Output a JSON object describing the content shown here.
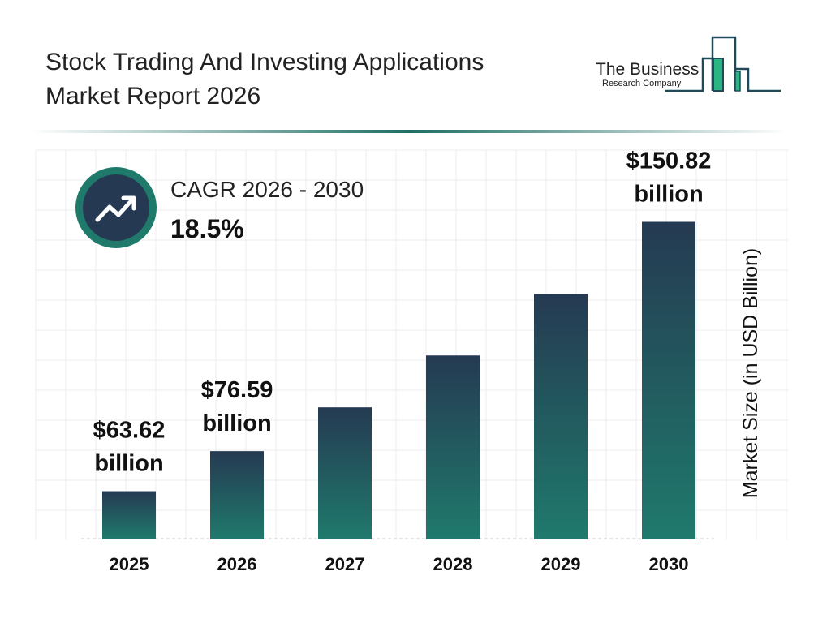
{
  "header": {
    "title_line1": "Stock Trading And Investing Applications",
    "title_line2": "Market Report 2026"
  },
  "logo": {
    "line1": "The Business",
    "line2": "Research Company"
  },
  "cagr": {
    "label": "CAGR 2026 - 2030",
    "value": "18.5%",
    "icon": "trend-up-arrow-icon"
  },
  "colors": {
    "bar_top": "#253a52",
    "bar_bottom": "#1f7a6c",
    "accent": "#1f7a6c"
  },
  "chart_data": {
    "type": "bar",
    "categories": [
      "2025",
      "2026",
      "2027",
      "2028",
      "2029",
      "2030"
    ],
    "values": [
      63.62,
      76.59,
      90.76,
      107.55,
      127.45,
      150.82
    ],
    "data_labels": [
      [
        "$63.62",
        "billion"
      ],
      [
        "$76.59",
        "billion"
      ],
      null,
      null,
      null,
      [
        "$150.82",
        "billion"
      ]
    ],
    "ylabel": "Market Size (in USD Billion)",
    "ylim": [
      48,
      152
    ],
    "grid": true
  }
}
